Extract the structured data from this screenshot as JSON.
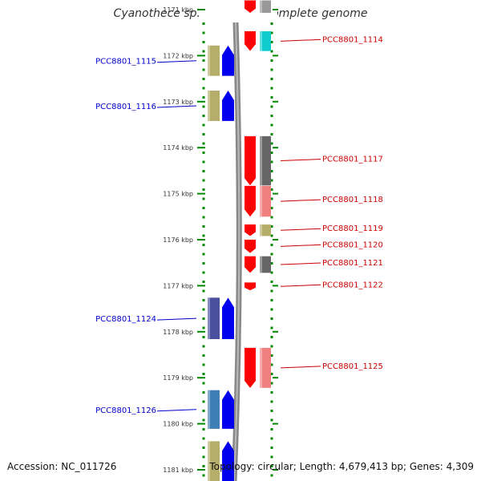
{
  "title": "Cyanothece sp. PCC 8801, complete genome",
  "accession_text": "Accession: NC_011726",
  "genome_info_text": "Topology: circular; Length: 4,679,413 bp; Genes: 4,309",
  "colors": {
    "minus_link": "#0000cc",
    "plus_link": "#cc0000",
    "tick": "#008800"
  },
  "scale_labels": [
    "1171 kbp",
    "1172 kbp",
    "1173 kbp",
    "1174 kbp",
    "1175 kbp",
    "1176 kbp",
    "1177 kbp",
    "1178 kbp",
    "1179 kbp",
    "1180 kbp",
    "1181 kbp"
  ],
  "genes_minus": [
    {
      "label": "PCC8801_1115",
      "start_kbp": 1171.78,
      "end_kbp": 1172.44,
      "arrow": "#0000ee",
      "bar": "#b5ad6a"
    },
    {
      "label": "PCC8801_1116",
      "start_kbp": 1172.76,
      "end_kbp": 1173.42,
      "arrow": "#0000ee",
      "bar": "#b5ad6a"
    },
    {
      "label": "PCC8801_1124",
      "start_kbp": 1177.26,
      "end_kbp": 1178.16,
      "arrow": "#0000ee",
      "bar": "#4a4f9e"
    },
    {
      "label": "PCC8801_1126",
      "start_kbp": 1179.27,
      "end_kbp": 1180.11,
      "arrow": "#0000ee",
      "bar": "#3f7fb5"
    },
    {
      "label": "",
      "start_kbp": 1180.38,
      "end_kbp": 1181.4,
      "arrow": "#0000ee",
      "bar": "#b5ad6a"
    }
  ],
  "genes_plus": [
    {
      "label": "",
      "start_kbp": 1170.8,
      "end_kbp": 1171.07,
      "arrow": "#ff0000",
      "bar": "#999999"
    },
    {
      "label": "PCC8801_1114",
      "start_kbp": 1171.47,
      "end_kbp": 1171.9,
      "arrow": "#ff0000",
      "bar": "#11cccc"
    },
    {
      "label": "PCC8801_1117",
      "start_kbp": 1173.75,
      "end_kbp": 1174.82,
      "arrow": "#ff0000",
      "bar": "#666666"
    },
    {
      "label": "PCC8801_1118",
      "start_kbp": 1174.83,
      "end_kbp": 1175.5,
      "arrow": "#ff0000",
      "bar": "#f08080"
    },
    {
      "label": "PCC8801_1119",
      "start_kbp": 1175.67,
      "end_kbp": 1175.92,
      "arrow": "#ff0000",
      "bar": "#b5ad6a"
    },
    {
      "label": "PCC8801_1120",
      "start_kbp": 1176.0,
      "end_kbp": 1176.29,
      "arrow": "#ff0000",
      "bar": ""
    },
    {
      "label": "PCC8801_1121",
      "start_kbp": 1176.36,
      "end_kbp": 1176.72,
      "arrow": "#ff0000",
      "bar": "#666666"
    },
    {
      "label": "PCC8801_1122",
      "start_kbp": 1176.93,
      "end_kbp": 1177.1,
      "arrow": "#ff0000",
      "bar": ""
    },
    {
      "label": "PCC8801_1125",
      "start_kbp": 1178.35,
      "end_kbp": 1179.22,
      "arrow": "#ff0000",
      "bar": "#f08080"
    }
  ]
}
